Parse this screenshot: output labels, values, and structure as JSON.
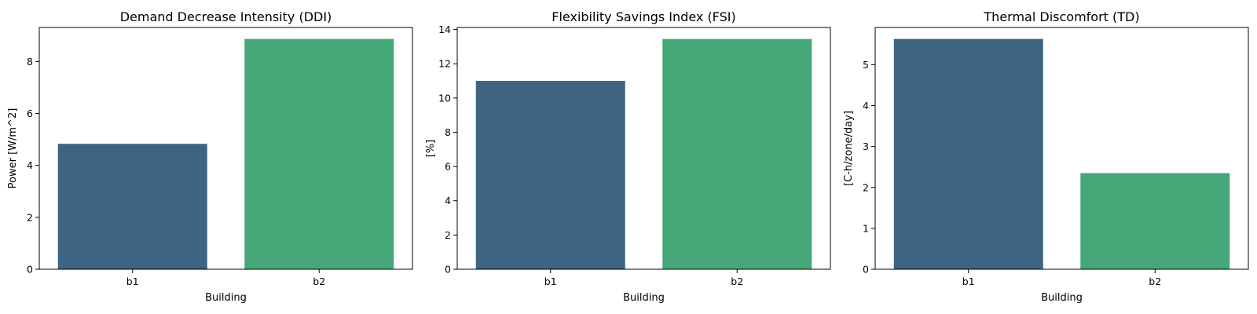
{
  "chart_data": [
    {
      "type": "bar",
      "title": "Demand Decrease Intensity (DDI)",
      "xlabel": "Building",
      "ylabel": "Power [W/m^2]",
      "categories": [
        "b1",
        "b2"
      ],
      "values": [
        4.83,
        8.87
      ],
      "colors": [
        "#3d6582",
        "#46a879"
      ],
      "ylim": [
        0,
        9.31
      ],
      "yticks": [
        0,
        2,
        4,
        6,
        8
      ],
      "grid": false
    },
    {
      "type": "bar",
      "title": "Flexibility Savings Index (FSI)",
      "xlabel": "Building",
      "ylabel": "[%]",
      "categories": [
        "b1",
        "b2"
      ],
      "values": [
        11.0,
        13.45
      ],
      "colors": [
        "#3d6582",
        "#46a879"
      ],
      "ylim": [
        0,
        14.12
      ],
      "yticks": [
        0,
        2,
        4,
        6,
        8,
        10,
        12,
        14
      ],
      "grid": false
    },
    {
      "type": "bar",
      "title": "Thermal Discomfort (TD)",
      "xlabel": "Building",
      "ylabel": "[C-h/zone/day]",
      "categories": [
        "b1",
        "b2"
      ],
      "values": [
        5.63,
        2.35
      ],
      "colors": [
        "#3d6582",
        "#46a879"
      ],
      "ylim": [
        0,
        5.91
      ],
      "yticks": [
        0,
        1,
        2,
        3,
        4,
        5
      ],
      "grid": false
    }
  ]
}
